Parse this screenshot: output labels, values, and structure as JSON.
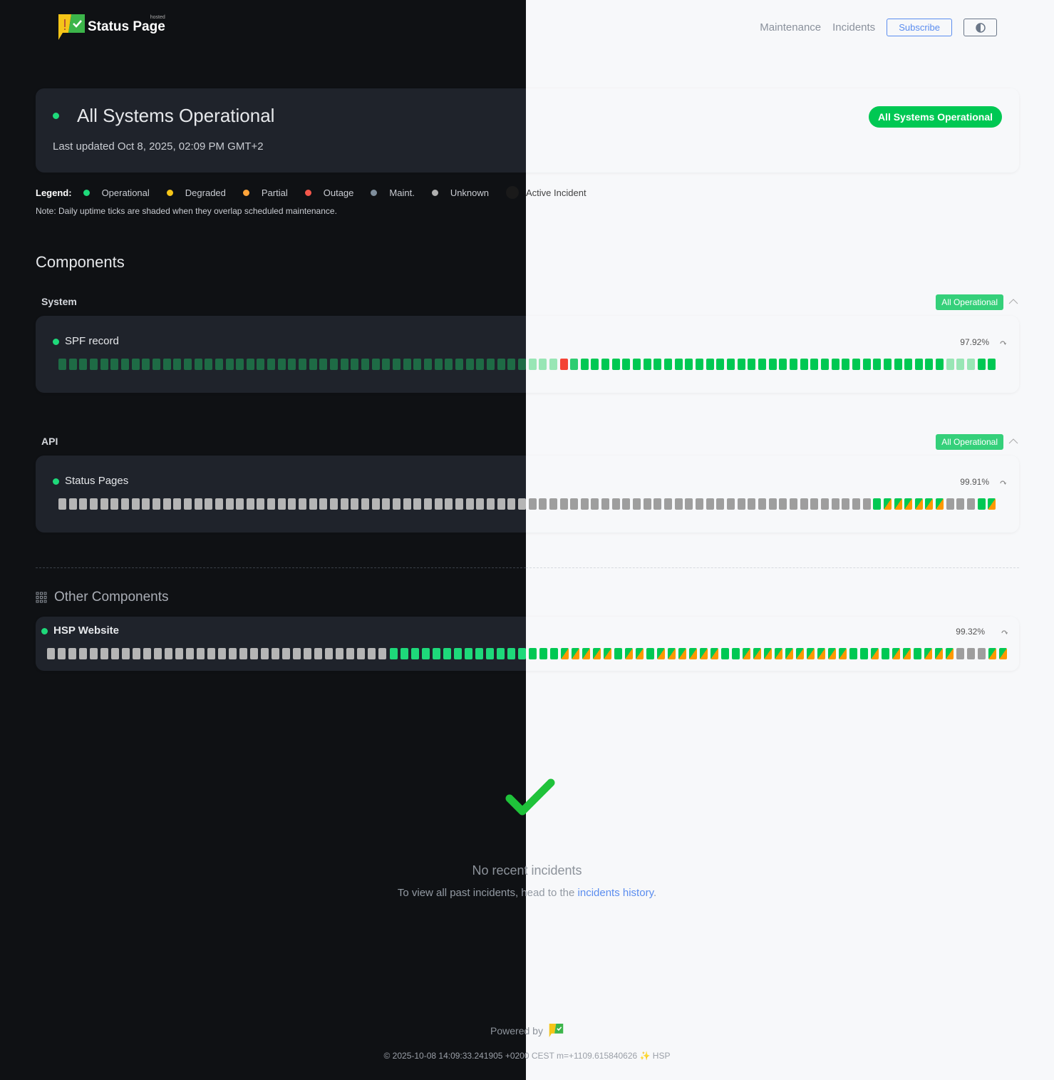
{
  "brand": {
    "name": "Status Page",
    "tag": "hosted"
  },
  "nav": {
    "maintenance": "Maintenance",
    "incidents": "Incidents",
    "subscribe": "Subscribe",
    "theme_icon": "half-circle-icon"
  },
  "hero": {
    "title": "All Systems Operational",
    "updated": "Last updated Oct 8, 2025, 02:09 PM GMT+2",
    "badge": "All Systems Operational"
  },
  "legend": {
    "label": "Legend:",
    "items": [
      {
        "label": "Operational",
        "color": "#1ed97a"
      },
      {
        "label": "Degraded",
        "color": "#f5c518"
      },
      {
        "label": "Partial",
        "color": "#ffa43a"
      },
      {
        "label": "Outage",
        "color": "#f4574b"
      },
      {
        "label": "Maint.",
        "color": "#7f8e9c"
      },
      {
        "label": "Unknown",
        "color": "#b0b0b0"
      },
      {
        "label": "Active Incident",
        "color": "#1a1a1a"
      }
    ],
    "note": "Note: Daily uptime ticks are shaded when they overlap scheduled maintenance."
  },
  "components_title": "Components",
  "groups": [
    {
      "name": "System",
      "badge": "All Operational",
      "components": [
        {
          "name": "SPF record",
          "uptime": "97.92%",
          "ticks": [
            [
              "shaded",
              48
            ],
            [
              "outage",
              1
            ],
            [
              "op2",
              1
            ],
            [
              "op",
              35
            ],
            [
              "shaded",
              3
            ],
            [
              "op",
              2
            ]
          ]
        }
      ]
    },
    {
      "name": "API",
      "badge": "All Operational",
      "components": [
        {
          "name": "Status Pages",
          "uptime": "99.91%",
          "ticks": [
            [
              "unknown",
              78
            ],
            [
              "op",
              1
            ],
            [
              "partial",
              6
            ],
            [
              "unknown",
              3
            ],
            [
              "op",
              1
            ],
            [
              "partial",
              1
            ]
          ]
        }
      ]
    }
  ],
  "other": {
    "title": "Other Components",
    "components": [
      {
        "name": "HSP Website",
        "uptime": "99.32%",
        "ticks": [
          [
            "unknown",
            32
          ],
          [
            "op",
            16
          ],
          [
            "partial",
            5
          ],
          [
            "op",
            1
          ],
          [
            "partial",
            2
          ],
          [
            "op",
            1
          ],
          [
            "partial",
            6
          ],
          [
            "op",
            2
          ],
          [
            "partial",
            10
          ],
          [
            "op",
            2
          ],
          [
            "partial",
            1
          ],
          [
            "op",
            1
          ],
          [
            "partial",
            2
          ],
          [
            "op",
            1
          ],
          [
            "partial",
            3
          ],
          [
            "unknown",
            3
          ],
          [
            "partial",
            2
          ]
        ]
      }
    ]
  },
  "incidents": {
    "title": "No recent incidents",
    "text": "To view all past incidents, head to the ",
    "link": "incidents history",
    "end": "."
  },
  "footer": {
    "powered": "Powered by",
    "stamp": "© 2025-10-08 14:09:33.241905 +0200 CEST m=+1109.615840626 ✨ HSP"
  },
  "colors": {
    "dark": {
      "op": "#1ed97a",
      "op2": "#1ed97a",
      "shaded": "#1e6b45",
      "outage": "#f4574b",
      "unknown": "#b5b5b5",
      "partial_a": "#1ed97a",
      "partial_b": "#ff9800"
    },
    "light": {
      "op": "#00c853",
      "op2": "#2ecc71",
      "shaded": "#98e6b5",
      "outage": "#f44336",
      "unknown": "#9e9e9e",
      "partial_a": "#00c853",
      "partial_b": "#ff9800"
    }
  }
}
